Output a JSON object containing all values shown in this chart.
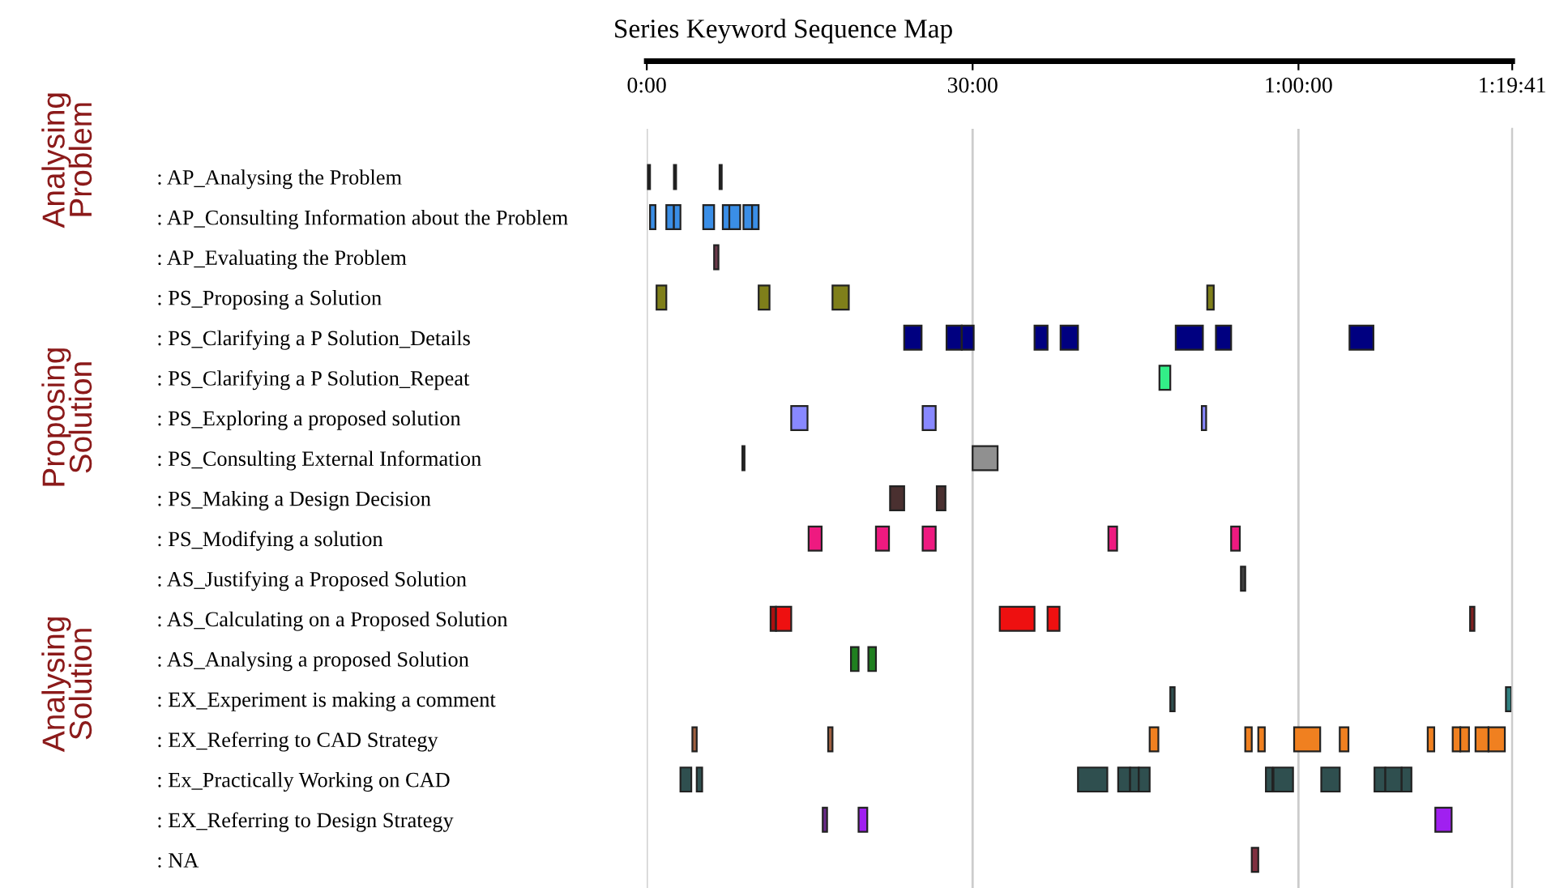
{
  "chart_data": {
    "type": "bar",
    "orientation": "horizontal",
    "title": "Series Keyword Sequence Map",
    "categories": [
      ": AP_Analysing the Problem",
      ": AP_Consulting Information about the Problem",
      ": AP_Evaluating the Problem",
      ": PS_Proposing a Solution",
      ": PS_Clarifying a P Solution_Details",
      ": PS_Clarifying a P Solution_Repeat",
      ": PS_Exploring a proposed solution",
      ": PS_Consulting External Information",
      ": PS_Making a Design Decision",
      ": PS_Modifying a solution",
      ": AS_Justifying a Proposed Solution",
      ": AS_Calculating on a Proposed Solution",
      ": AS_Analysing a proposed Solution",
      ": EX_Experiment is making a comment",
      ": EX_Referring to CAD Strategy",
      ": Ex_Practically Working on CAD",
      ": EX_Referring to Design Strategy",
      ": NA"
    ],
    "annotations": [
      "Analysing Problem",
      "Proposing Solution",
      "Analysing Solution"
    ],
    "xlim": [
      0,
      79.68
    ],
    "xticks": [
      {
        "value": 0,
        "label": "0:00"
      },
      {
        "value": 30,
        "label": "30:00"
      },
      {
        "value": 60,
        "label": "1:00:00"
      },
      {
        "value": 79.68,
        "label": "1:19:41"
      }
    ],
    "grid": "x",
    "series": [
      {
        "base": [
          0.1,
          0.3,
          6.2,
          0.9,
          23.7,
          47.2,
          13.3,
          8.8,
          22.4,
          14.9,
          54.7,
          11.4,
          18.8,
          48.2,
          4.2,
          3.1,
          16.2,
          55.7
        ],
        "values": [
          0.2,
          0.5,
          0.4,
          0.9,
          1.6,
          1.0,
          1.5,
          0.2,
          1.3,
          1.2,
          0.4,
          0.5,
          0.7,
          0.4,
          0.4,
          1.0,
          0.4,
          0.6
        ],
        "colors": [
          "#202020",
          "#3a8ee6",
          "#6b3a4a",
          "#7f7f1a",
          "#000080",
          "#33ee88",
          "#8888ff",
          "#2a2a2a",
          "#4a3030",
          "#ee1a80",
          "#404040",
          "#aa1010",
          "#208020",
          "#305050",
          "#a06040",
          "#2f4f4f",
          "#6a2a8a",
          "#803040"
        ]
      },
      {
        "base": [
          2.5,
          1.8,
          null,
          10.3,
          27.6,
          null,
          25.4,
          30.0,
          26.7,
          21.1,
          null,
          11.9,
          20.4,
          79.1,
          16.7,
          4.6,
          19.5,
          null
        ],
        "values": [
          0.2,
          0.7,
          null,
          1.0,
          1.4,
          null,
          1.2,
          2.3,
          0.8,
          1.2,
          null,
          1.4,
          0.7,
          0.5,
          0.4,
          0.5,
          0.8,
          null
        ],
        "colors": [
          "#202020",
          "#3a8ee6",
          null,
          "#7f7f1a",
          "#000080",
          null,
          "#8888ff",
          "#909090",
          "#4a3030",
          "#ee1a80",
          null,
          "#ee1010",
          "#208020",
          "#308080",
          "#a06040",
          "#2f4f4f",
          "#a020f0",
          null
        ]
      },
      {
        "base": [
          6.7,
          2.5,
          null,
          17.1,
          29.0,
          null,
          51.1,
          null,
          null,
          25.4,
          null,
          32.5,
          null,
          null,
          46.3,
          39.7,
          72.6,
          null
        ],
        "values": [
          0.2,
          0.6,
          null,
          1.5,
          1.1,
          null,
          0.4,
          null,
          null,
          1.2,
          null,
          3.2,
          null,
          null,
          0.8,
          2.7,
          1.5,
          null
        ],
        "colors": [
          "#202020",
          "#3a8ee6",
          null,
          "#7f7f1a",
          "#000080",
          null,
          "#8888ff",
          null,
          null,
          "#ee1a80",
          null,
          "#ee1010",
          null,
          null,
          "#f08020",
          "#2f4f4f",
          "#a020f0",
          null
        ]
      },
      {
        "base": [
          null,
          5.2,
          null,
          51.6,
          35.7,
          null,
          null,
          null,
          null,
          42.5,
          null,
          36.9,
          null,
          null,
          55.1,
          43.4,
          null,
          null
        ],
        "values": [
          null,
          1.0,
          null,
          0.6,
          1.2,
          null,
          null,
          null,
          null,
          0.8,
          null,
          1.1,
          null,
          null,
          0.6,
          1.1,
          null,
          null
        ],
        "colors": [
          null,
          "#3a8ee6",
          null,
          "#7f7f1a",
          "#000080",
          null,
          null,
          null,
          null,
          "#ee1a80",
          null,
          "#ee1010",
          null,
          null,
          "#f08020",
          "#2f4f4f",
          null,
          null
        ]
      },
      {
        "base": [
          null,
          7.0,
          null,
          null,
          38.1,
          null,
          null,
          null,
          null,
          53.8,
          null,
          75.8,
          null,
          null,
          56.3,
          44.5,
          null,
          null
        ],
        "values": [
          null,
          0.7,
          null,
          null,
          1.6,
          null,
          null,
          null,
          null,
          0.8,
          null,
          0.4,
          null,
          null,
          0.6,
          0.8,
          null,
          null
        ],
        "colors": [
          null,
          "#3a8ee6",
          null,
          null,
          "#000080",
          null,
          null,
          null,
          null,
          "#ee1a80",
          null,
          "#802020",
          null,
          null,
          "#f08020",
          "#2f4f4f",
          null,
          null
        ]
      },
      {
        "base": [
          null,
          7.6,
          null,
          null,
          48.7,
          null,
          null,
          null,
          null,
          null,
          null,
          null,
          null,
          null,
          59.6,
          45.3,
          null,
          null
        ],
        "values": [
          null,
          1.0,
          null,
          null,
          2.5,
          null,
          null,
          null,
          null,
          null,
          null,
          null,
          null,
          null,
          2.4,
          1.0,
          null,
          null
        ],
        "colors": [
          null,
          "#3a8ee6",
          null,
          null,
          "#000080",
          null,
          null,
          null,
          null,
          null,
          null,
          null,
          null,
          null,
          "#f08020",
          "#2f4f4f",
          null,
          null
        ]
      },
      {
        "base": [
          null,
          8.9,
          null,
          null,
          52.4,
          null,
          null,
          null,
          null,
          null,
          null,
          null,
          null,
          null,
          63.8,
          57.0,
          null,
          null
        ],
        "values": [
          null,
          0.8,
          null,
          null,
          1.4,
          null,
          null,
          null,
          null,
          null,
          null,
          null,
          null,
          null,
          0.8,
          0.6,
          null,
          null
        ],
        "colors": [
          null,
          "#3a8ee6",
          null,
          null,
          "#000080",
          null,
          null,
          null,
          null,
          null,
          null,
          null,
          null,
          null,
          "#f08020",
          "#2f4f4f",
          null,
          null
        ]
      },
      {
        "base": [
          null,
          9.7,
          null,
          null,
          64.7,
          null,
          null,
          null,
          null,
          null,
          null,
          null,
          null,
          null,
          71.9,
          57.7,
          null,
          null
        ],
        "values": [
          null,
          0.6,
          null,
          null,
          2.2,
          null,
          null,
          null,
          null,
          null,
          null,
          null,
          null,
          null,
          0.6,
          1.8,
          null,
          null
        ],
        "colors": [
          null,
          "#3a8ee6",
          null,
          null,
          "#000080",
          null,
          null,
          null,
          null,
          null,
          null,
          null,
          null,
          null,
          "#f08020",
          "#2f4f4f",
          null,
          null
        ]
      },
      {
        "base": [
          null,
          null,
          null,
          null,
          null,
          null,
          null,
          null,
          null,
          null,
          null,
          null,
          null,
          null,
          74.2,
          62.1,
          null,
          null
        ],
        "values": [
          null,
          null,
          null,
          null,
          null,
          null,
          null,
          null,
          null,
          null,
          null,
          null,
          null,
          null,
          0.7,
          1.7,
          null,
          null
        ],
        "colors": [
          null,
          null,
          null,
          null,
          null,
          null,
          null,
          null,
          null,
          null,
          null,
          null,
          null,
          null,
          "#f08020",
          "#2f4f4f",
          null,
          null
        ]
      },
      {
        "base": [
          null,
          null,
          null,
          null,
          null,
          null,
          null,
          null,
          null,
          null,
          null,
          null,
          null,
          null,
          74.9,
          67.0,
          null,
          null
        ],
        "values": [
          null,
          null,
          null,
          null,
          null,
          null,
          null,
          null,
          null,
          null,
          null,
          null,
          null,
          null,
          0.8,
          1.0,
          null,
          null
        ],
        "colors": [
          null,
          null,
          null,
          null,
          null,
          null,
          null,
          null,
          null,
          null,
          null,
          null,
          null,
          null,
          "#f08020",
          "#2f4f4f",
          null,
          null
        ]
      },
      {
        "base": [
          null,
          null,
          null,
          null,
          null,
          null,
          null,
          null,
          null,
          null,
          null,
          null,
          null,
          null,
          76.3,
          68.0,
          null,
          null
        ],
        "values": [
          null,
          null,
          null,
          null,
          null,
          null,
          null,
          null,
          null,
          null,
          null,
          null,
          null,
          null,
          1.2,
          1.5,
          null,
          null
        ],
        "colors": [
          null,
          null,
          null,
          null,
          null,
          null,
          null,
          null,
          null,
          null,
          null,
          null,
          null,
          null,
          "#f08020",
          "#2f4f4f",
          null,
          null
        ]
      },
      {
        "base": [
          null,
          null,
          null,
          null,
          null,
          null,
          null,
          null,
          null,
          null,
          null,
          null,
          null,
          null,
          77.5,
          69.5,
          null,
          null
        ],
        "values": [
          null,
          null,
          null,
          null,
          null,
          null,
          null,
          null,
          null,
          null,
          null,
          null,
          null,
          null,
          1.5,
          0.9,
          null,
          null
        ],
        "colors": [
          null,
          null,
          null,
          null,
          null,
          null,
          null,
          null,
          null,
          null,
          null,
          null,
          null,
          null,
          "#f08020",
          "#2f4f4f",
          null,
          null
        ]
      }
    ]
  }
}
